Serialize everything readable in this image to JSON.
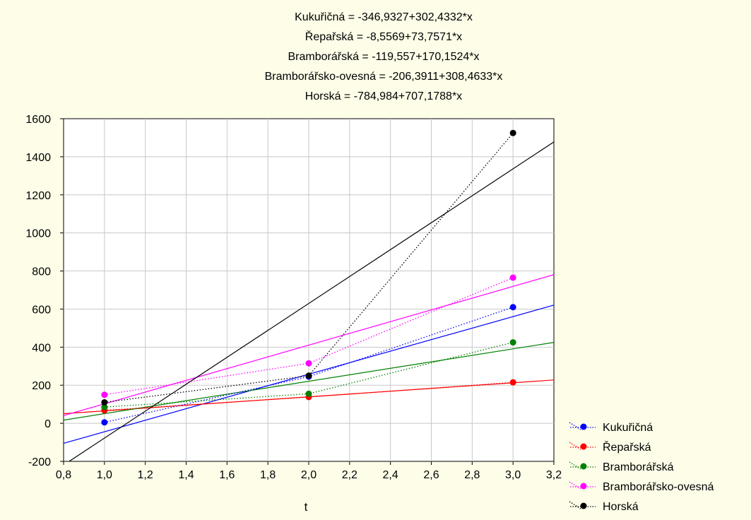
{
  "chart_data": {
    "type": "line",
    "title_lines": [
      "Kukuřičná = -346,9327+302,4332*x",
      "Řepařská = -8,5569+73,7571*x",
      "Bramborářská = -119,557+170,1524*x",
      "Bramborářsko-ovesná = -206,3911+308,4633*x",
      "Horská = -784,984+707,1788*x"
    ],
    "xlabel": "t",
    "ylabel": "",
    "xlim": [
      0.8,
      3.2
    ],
    "ylim": [
      -200,
      1600
    ],
    "xticks": [
      {
        "v": 0.8,
        "label": "0,8"
      },
      {
        "v": 1.0,
        "label": "1,0"
      },
      {
        "v": 1.2,
        "label": "1,2"
      },
      {
        "v": 1.4,
        "label": "1,4"
      },
      {
        "v": 1.6,
        "label": "1,6"
      },
      {
        "v": 1.8,
        "label": "1,8"
      },
      {
        "v": 2.0,
        "label": "2,0"
      },
      {
        "v": 2.2,
        "label": "2,2"
      },
      {
        "v": 2.4,
        "label": "2,4"
      },
      {
        "v": 2.6,
        "label": "2,6"
      },
      {
        "v": 2.8,
        "label": "2,8"
      },
      {
        "v": 3.0,
        "label": "3,0"
      },
      {
        "v": 3.2,
        "label": "3,2"
      }
    ],
    "yticks": [
      {
        "v": -200,
        "label": "-200"
      },
      {
        "v": 0,
        "label": "0"
      },
      {
        "v": 200,
        "label": "200"
      },
      {
        "v": 400,
        "label": "400"
      },
      {
        "v": 600,
        "label": "600"
      },
      {
        "v": 800,
        "label": "800"
      },
      {
        "v": 1000,
        "label": "1000"
      },
      {
        "v": 1200,
        "label": "1200"
      },
      {
        "v": 1400,
        "label": "1400"
      },
      {
        "v": 1600,
        "label": "1600"
      }
    ],
    "grid": true,
    "legend_position": "bottom-right",
    "series": [
      {
        "name": "Kukuřičná",
        "color": "#0000ff",
        "x": [
          1,
          2,
          3
        ],
        "y": [
          5,
          245,
          610
        ],
        "fit": {
          "a": -346.9327,
          "b": 302.4332
        }
      },
      {
        "name": "Řepařská",
        "color": "#ff0000",
        "x": [
          1,
          2,
          3
        ],
        "y": [
          68,
          138,
          215
        ],
        "fit": {
          "a": -8.5569,
          "b": 73.7571
        }
      },
      {
        "name": "Bramborářská",
        "color": "#008000",
        "x": [
          1,
          2,
          3
        ],
        "y": [
          85,
          155,
          425
        ],
        "fit": {
          "a": -119.557,
          "b": 170.1524
        }
      },
      {
        "name": "Bramborářsko-ovesná",
        "color": "#ff00ff",
        "x": [
          1,
          2,
          3
        ],
        "y": [
          150,
          315,
          765
        ],
        "fit": {
          "a": -206.3911,
          "b": 308.4633
        }
      },
      {
        "name": "Horská",
        "color": "#000000",
        "x": [
          1,
          2,
          3
        ],
        "y": [
          110,
          250,
          1525
        ],
        "fit": {
          "a": -784.984,
          "b": 707.1788
        }
      }
    ]
  }
}
